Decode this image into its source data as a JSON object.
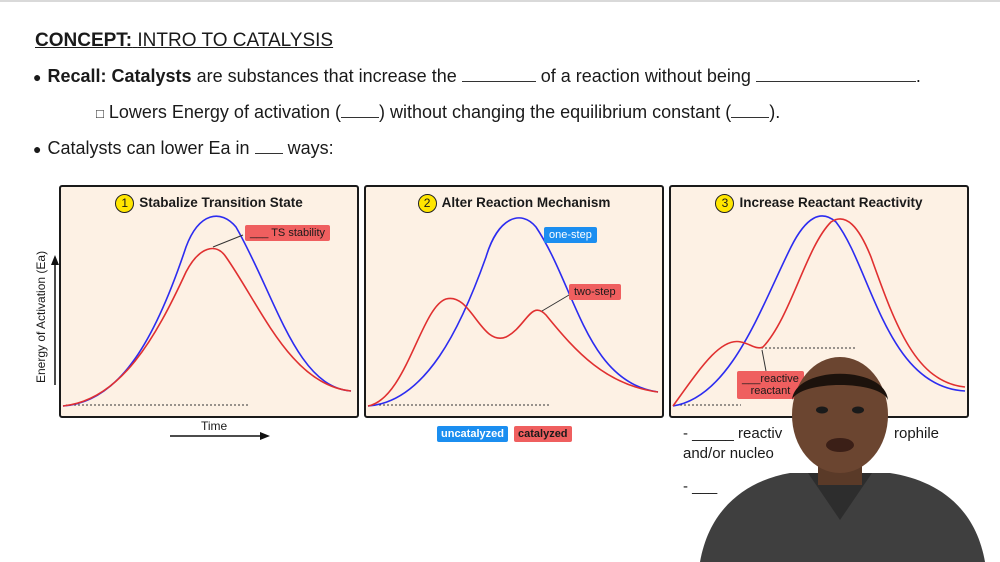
{
  "header": {
    "concept_prefix": "CONCEPT:",
    "concept_title": "INTRO TO CATALYSIS"
  },
  "bullets": {
    "recall_label": "Recall: Catalysts",
    "recall_text_1": "are substances that increase the",
    "recall_text_2": "of a reaction without being",
    "recall_end": ".",
    "sub_text_1": "Lowers Energy of activation (",
    "sub_text_2": ") without changing the equilibrium constant (",
    "sub_end": ").",
    "ways_text_1": "Catalysts can lower Ea in",
    "ways_text_2": "ways:"
  },
  "panels": [
    {
      "number": "1",
      "title": "Stabalize Transition State",
      "tag": "___ TS stability"
    },
    {
      "number": "2",
      "title": "Alter Reaction Mechanism",
      "tag_blue": "one-step",
      "tag_red": "two-step"
    },
    {
      "number": "3",
      "title": "Increase Reactant Reactivity",
      "tag_line1": "___reactive",
      "tag_line2": "reactant"
    }
  ],
  "axes": {
    "ylabel": "Energy of Activation (Ea)",
    "xlabel": "Time"
  },
  "legend": {
    "uncatalyzed": "uncatalyzed",
    "catalyzed": "catalyzed"
  },
  "notes": {
    "line1": "- _____ reactiv",
    "line1_end": "rophile",
    "line2": "and/or nucleo",
    "line3": "- ___"
  },
  "colors": {
    "uncatalyzed": "#2c2cf0",
    "catalyzed": "#e03030",
    "panel_bg": "#fdf1e4",
    "badge": "#ffe600"
  }
}
